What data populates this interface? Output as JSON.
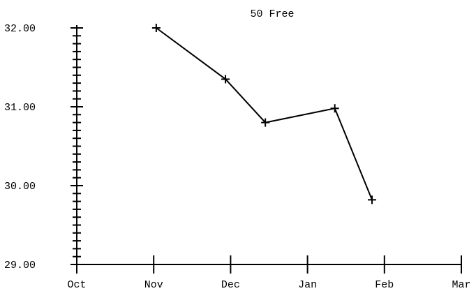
{
  "chart_data": {
    "type": "line",
    "title": "50 Free",
    "xlabel": "",
    "ylabel": "",
    "x_ticks": [
      "Oct",
      "Nov",
      "Dec",
      "Jan",
      "Feb",
      "Mar"
    ],
    "y_ticks": [
      "29.00",
      "30.00",
      "31.00",
      "32.00"
    ],
    "ylim": [
      29.0,
      32.0
    ],
    "y_minor_step": 0.1,
    "grid": false,
    "legend": "none",
    "marker": "plus",
    "line_color": "#000000",
    "series": [
      {
        "points": [
          {
            "x": "Nov 2",
            "y": 32.0
          },
          {
            "x": "Nov 29",
            "y": 31.35
          },
          {
            "x": "Dec 15",
            "y": 30.8
          },
          {
            "x": "Jan 12",
            "y": 30.98
          },
          {
            "x": "Jan 27",
            "y": 29.82
          }
        ]
      }
    ]
  }
}
